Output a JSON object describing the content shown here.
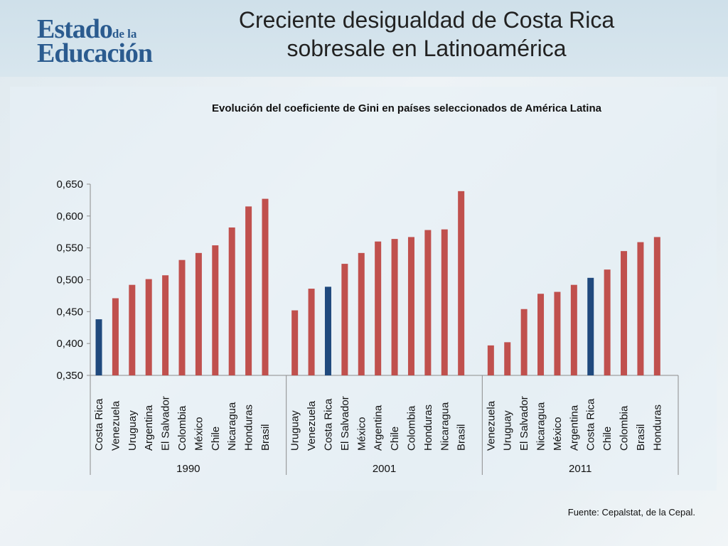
{
  "header": {
    "logo_line1": "Estado",
    "logo_small": "de la",
    "logo_line2": "Educación",
    "title_line1": "Creciente desigualdad de Costa Rica",
    "title_line2": "sobresale en Latinoamérica"
  },
  "source": "Fuente: Cepalstat, de la Cepal.",
  "colors": {
    "bar": "#c0504d",
    "highlight": "#1f497d"
  },
  "chart_data": {
    "type": "bar",
    "title": "Evolución del coeficiente de Gini en países seleccionados de América Latina",
    "xlabel": "",
    "ylabel": "",
    "ylim": [
      0.35,
      0.65
    ],
    "yticks": [
      "0,350",
      "0,400",
      "0,450",
      "0,500",
      "0,550",
      "0,600",
      "0,650"
    ],
    "grid": false,
    "highlight": "Costa Rica",
    "groups": [
      {
        "label": "1990",
        "categories": [
          "Costa Rica",
          "Venezuela",
          "Uruguay",
          "Argentina",
          "El Salvador",
          "Colombia",
          "México",
          "Chile",
          "Nicaragua",
          "Honduras",
          "Brasil"
        ],
        "values": [
          0.438,
          0.471,
          0.492,
          0.501,
          0.507,
          0.531,
          0.542,
          0.554,
          0.582,
          0.615,
          0.627
        ]
      },
      {
        "label": "2001",
        "categories": [
          "Uruguay",
          "Venezuela",
          "Costa Rica",
          "El Salvador",
          "México",
          "Argentina",
          "Chile",
          "Colombia",
          "Honduras",
          "Nicaragua",
          "Brasil"
        ],
        "values": [
          0.452,
          0.486,
          0.489,
          0.525,
          0.542,
          0.56,
          0.564,
          0.567,
          0.578,
          0.579,
          0.639
        ]
      },
      {
        "label": "2011",
        "categories": [
          "Venezuela",
          "Uruguay",
          "El Salvador",
          "Nicaragua",
          "México",
          "Argentina",
          "Costa Rica",
          "Chile",
          "Colombia",
          "Brasil",
          "Honduras"
        ],
        "values": [
          0.397,
          0.402,
          0.454,
          0.478,
          0.481,
          0.492,
          0.503,
          0.516,
          0.545,
          0.559,
          0.567
        ]
      }
    ]
  }
}
